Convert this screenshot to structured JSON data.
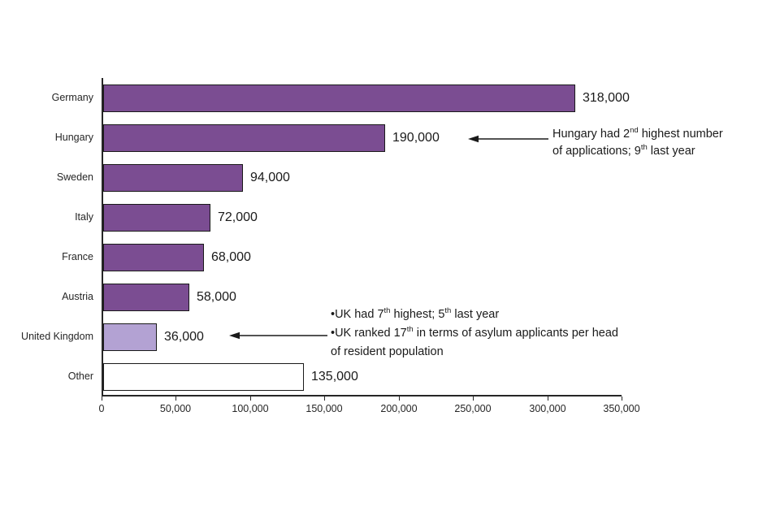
{
  "chart_data": {
    "type": "bar",
    "orientation": "horizontal",
    "categories": [
      "Germany",
      "Hungary",
      "Sweden",
      "Italy",
      "France",
      "Austria",
      "United Kingdom",
      "Other"
    ],
    "values": [
      318000,
      190000,
      94000,
      72000,
      68000,
      58000,
      36000,
      135000
    ],
    "value_labels": [
      "318,000",
      "190,000",
      "94,000",
      "72,000",
      "68,000",
      "58,000",
      "36,000",
      "135,000"
    ],
    "bar_colors": [
      "#7b4d92",
      "#7b4d92",
      "#7b4d92",
      "#7b4d92",
      "#7b4d92",
      "#7b4d92",
      "#b3a2d3",
      "#ffffff"
    ],
    "bar_border_color": "#1a1a1a",
    "xlim": [
      0,
      350000
    ],
    "x_tick_values": [
      0,
      50000,
      100000,
      150000,
      200000,
      250000,
      300000,
      350000
    ],
    "x_ticks": [
      "0",
      "50,000",
      "100,000",
      "150,000",
      "200,000",
      "250,000",
      "300,000",
      "350,000"
    ],
    "grid": false,
    "legend": false,
    "annotations": [
      {
        "target": "Hungary",
        "lines": [
          [
            {
              "t": "Hungary had 2"
            },
            {
              "t": "nd",
              "sup": true
            },
            {
              "t": " highest number"
            }
          ],
          [
            {
              "t": "of applications; 9"
            },
            {
              "t": "th",
              "sup": true
            },
            {
              "t": " last year"
            }
          ]
        ]
      },
      {
        "target": "United Kingdom",
        "lines": [
          [
            {
              "t": "•UK had 7"
            },
            {
              "t": "th",
              "sup": true
            },
            {
              "t": " highest; 5"
            },
            {
              "t": "th",
              "sup": true
            },
            {
              "t": " last year"
            }
          ],
          [
            {
              "t": "•UK ranked 17"
            },
            {
              "t": "th",
              "sup": true
            },
            {
              "t": " in terms of asylum applicants per head"
            }
          ],
          [
            {
              "t": "of resident population"
            }
          ]
        ]
      }
    ]
  }
}
